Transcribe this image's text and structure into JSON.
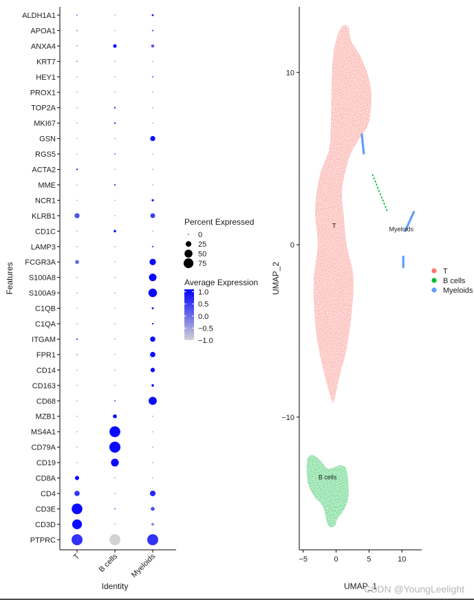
{
  "chart_data": [
    {
      "type": "dotplot",
      "xlabel": "Identity",
      "ylabel": "Features",
      "identities": [
        "T",
        "B cells",
        "Myeloids"
      ],
      "features": [
        "ALDH1A1",
        "APOA1",
        "ANXA4",
        "KRT7",
        "HEY1",
        "PROX1",
        "TOP2A",
        "MKI67",
        "GSN",
        "RGS5",
        "ACTA2",
        "MME",
        "NCR1",
        "KLRB1",
        "CD1C",
        "LAMP3",
        "FCGR3A",
        "S100A8",
        "S100A9",
        "C1QB",
        "C1QA",
        "ITGAM",
        "FPR1",
        "CD14",
        "CD163",
        "CD68",
        "MZB1",
        "MS4A1",
        "CD79A",
        "CD19",
        "CD8A",
        "CD4",
        "CD3E",
        "CD3D",
        "PTPRC"
      ],
      "percent_expressed": [
        [
          1,
          0,
          3
        ],
        [
          1,
          0,
          2
        ],
        [
          1,
          10,
          8
        ],
        [
          1,
          0,
          0
        ],
        [
          0,
          0,
          1
        ],
        [
          0,
          0,
          0
        ],
        [
          0,
          2,
          0
        ],
        [
          0,
          2,
          0
        ],
        [
          0,
          0,
          20
        ],
        [
          0,
          1,
          0
        ],
        [
          2,
          0,
          0
        ],
        [
          0,
          2,
          0
        ],
        [
          0,
          0,
          4
        ],
        [
          20,
          0,
          18
        ],
        [
          0,
          5,
          0
        ],
        [
          0,
          0,
          2
        ],
        [
          12,
          0,
          32
        ],
        [
          0,
          0,
          45
        ],
        [
          0,
          0,
          58
        ],
        [
          0,
          0,
          3
        ],
        [
          0,
          0,
          2
        ],
        [
          2,
          0,
          22
        ],
        [
          1,
          0,
          22
        ],
        [
          0,
          0,
          15
        ],
        [
          0,
          0,
          5
        ],
        [
          0,
          2,
          52
        ],
        [
          0,
          12,
          0
        ],
        [
          0,
          92,
          0
        ],
        [
          0,
          96,
          0
        ],
        [
          0,
          48,
          0
        ],
        [
          14,
          0,
          0
        ],
        [
          22,
          0,
          25
        ],
        [
          90,
          2,
          12
        ],
        [
          75,
          0,
          6
        ],
        [
          95,
          95,
          95
        ]
      ],
      "average_expression": [
        [
          0.3,
          0.0,
          1.0
        ],
        [
          0.0,
          0.0,
          0.3
        ],
        [
          -0.2,
          1.0,
          0.2
        ],
        [
          0.2,
          0.0,
          0.0
        ],
        [
          0.0,
          0.0,
          0.8
        ],
        [
          0.0,
          0.0,
          0.0
        ],
        [
          0.0,
          0.8,
          0.0
        ],
        [
          0.0,
          0.8,
          0.0
        ],
        [
          -0.3,
          0.0,
          1.0
        ],
        [
          0.0,
          0.5,
          0.0
        ],
        [
          1.0,
          0.0,
          0.0
        ],
        [
          0.0,
          0.5,
          0.0
        ],
        [
          0.0,
          0.0,
          0.9
        ],
        [
          0.3,
          0.0,
          0.5
        ],
        [
          0.0,
          1.0,
          0.0
        ],
        [
          0.0,
          0.0,
          0.5
        ],
        [
          0.1,
          0.0,
          1.0
        ],
        [
          0.0,
          0.0,
          1.0
        ],
        [
          0.0,
          0.0,
          1.0
        ],
        [
          0.0,
          0.0,
          1.0
        ],
        [
          0.0,
          0.0,
          1.0
        ],
        [
          0.5,
          0.0,
          1.0
        ],
        [
          0.0,
          0.0,
          1.0
        ],
        [
          0.0,
          0.0,
          1.0
        ],
        [
          0.0,
          0.0,
          1.0
        ],
        [
          0.0,
          0.0,
          1.0
        ],
        [
          0.0,
          1.0,
          0.0
        ],
        [
          0.0,
          1.0,
          0.0
        ],
        [
          0.0,
          1.0,
          0.0
        ],
        [
          0.0,
          1.0,
          0.0
        ],
        [
          1.0,
          0.0,
          0.0
        ],
        [
          0.6,
          0.0,
          0.7
        ],
        [
          1.0,
          -0.2,
          0.3
        ],
        [
          1.0,
          0.0,
          -0.3
        ],
        [
          0.6,
          -1.0,
          0.6
        ]
      ],
      "size_legend": {
        "title": "Percent Expressed",
        "breaks": [
          0,
          25,
          50,
          75
        ]
      },
      "color_legend": {
        "title": "Average Expression",
        "breaks": [
          1.0,
          0.5,
          0.0,
          -0.5,
          -1.0
        ],
        "break_labels": [
          "1.0",
          "0.5",
          "0.0",
          "−0.5",
          "−1.0"
        ],
        "low_color": "#d3d3d3",
        "high_color": "#0000ff",
        "range": [
          -1.0,
          1.1
        ]
      }
    },
    {
      "type": "scatter",
      "xlabel": "UMAP_1",
      "ylabel": "UMAP_2",
      "xlim": [
        -5.6,
        13
      ],
      "ylim": [
        -17.7,
        13.8
      ],
      "x_ticks": [
        -5,
        0,
        5,
        10
      ],
      "x_tick_labels": [
        "−5",
        "0",
        "5",
        "10"
      ],
      "y_ticks": [
        10,
        0,
        -10
      ],
      "y_tick_labels": [
        "10",
        "0",
        "−10"
      ],
      "series": [
        {
          "name": "T",
          "color": "#f8766d",
          "outline": [
            [
              -0.8,
              -8.9
            ],
            [
              -0.3,
              -9.0
            ],
            [
              0.6,
              -7.5
            ],
            [
              1.6,
              -6.0
            ],
            [
              2.4,
              -3.8
            ],
            [
              2.6,
              -1.8
            ],
            [
              1.6,
              0.0
            ],
            [
              1.2,
              1.5
            ],
            [
              0.9,
              3.2
            ],
            [
              1.8,
              4.8
            ],
            [
              2.5,
              5.5
            ],
            [
              3.6,
              6.2
            ],
            [
              4.9,
              7.0
            ],
            [
              5.3,
              8.0
            ],
            [
              5.3,
              9.0
            ],
            [
              4.7,
              10.0
            ],
            [
              3.6,
              11.0
            ],
            [
              2.3,
              11.8
            ],
            [
              1.9,
              12.6
            ],
            [
              1.0,
              12.7
            ],
            [
              0.1,
              12.0
            ],
            [
              -0.5,
              10.8
            ],
            [
              -0.7,
              9.0
            ],
            [
              -0.8,
              7.0
            ],
            [
              -1.1,
              5.5
            ],
            [
              -2.5,
              4.0
            ],
            [
              -3.2,
              2.0
            ],
            [
              -2.8,
              0.0
            ],
            [
              -3.4,
              -2.0
            ],
            [
              -3.2,
              -4.5
            ],
            [
              -2.4,
              -6.5
            ]
          ]
        },
        {
          "name": "B cells",
          "color": "#00ba38",
          "outline": [
            [
              -4.4,
              -12.5
            ],
            [
              -3.5,
              -12.2
            ],
            [
              -2.2,
              -12.6
            ],
            [
              -1.2,
              -13.0
            ],
            [
              0.7,
              -12.8
            ],
            [
              1.6,
              -13.1
            ],
            [
              1.9,
              -14.5
            ],
            [
              1.3,
              -15.3
            ],
            [
              0.2,
              -15.9
            ],
            [
              -0.2,
              -16.3
            ],
            [
              -1.2,
              -16.3
            ],
            [
              -2.0,
              -15.2
            ],
            [
              -3.3,
              -14.6
            ],
            [
              -4.3,
              -13.8
            ]
          ]
        },
        {
          "name": "Myeloids",
          "color": "#619cff",
          "segments": [
            [
              [
                3.9,
                6.4
              ],
              [
                4.2,
                5.3
              ]
            ],
            [
              [
                10.2,
                -0.7
              ],
              [
                10.2,
                -1.3
              ]
            ],
            [
              [
                10.5,
                0.8
              ],
              [
                11.8,
                1.9
              ]
            ]
          ]
        }
      ],
      "bridge_segments": [
        [
          [
            5.5,
            4.1
          ],
          [
            7.8,
            1.9
          ]
        ]
      ],
      "cluster_labels": [
        {
          "text": "T",
          "x": -0.3,
          "y": 1.1
        },
        {
          "text": "Myeloids",
          "x": 9.9,
          "y": 0.9
        },
        {
          "text": "B cells",
          "x": -1.3,
          "y": -13.5
        }
      ],
      "legend": {
        "position": "right",
        "items": [
          {
            "label": "T",
            "color": "#f8766d"
          },
          {
            "label": "B cells",
            "color": "#00ba38"
          },
          {
            "label": "Myeloids",
            "color": "#619cff"
          }
        ]
      }
    }
  ],
  "watermark": "CSDN @YoungLeelight"
}
